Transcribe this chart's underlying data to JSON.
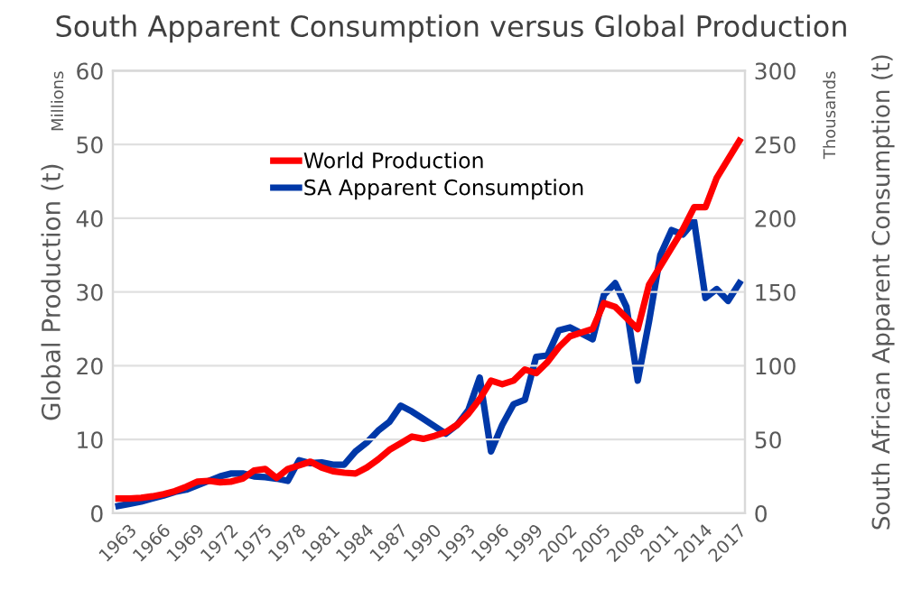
{
  "chart_data": {
    "type": "line",
    "title": "South Apparent Consumption versus Global Production",
    "categories": [
      "1963",
      null,
      null,
      "1966",
      null,
      null,
      "1969",
      null,
      null,
      "1972",
      null,
      null,
      "1975",
      null,
      null,
      "1978",
      null,
      null,
      "1981",
      null,
      null,
      "1984",
      null,
      null,
      "1987",
      null,
      null,
      "1990",
      null,
      null,
      "1993",
      null,
      null,
      "1996",
      null,
      null,
      "1999",
      null,
      null,
      "2002",
      null,
      null,
      "2005",
      null,
      null,
      "2008",
      null,
      null,
      "2011",
      null,
      null,
      "2014",
      null,
      null,
      "2017",
      null
    ],
    "series": [
      {
        "name": "World Production",
        "color": "#ff0000",
        "values": [
          2.0,
          2.0,
          2.1,
          2.3,
          2.6,
          3.0,
          3.6,
          4.3,
          4.4,
          4.2,
          4.3,
          4.7,
          5.8,
          6.0,
          4.8,
          6.0,
          6.5,
          7.0,
          6.2,
          5.7,
          5.5,
          5.4,
          6.2,
          7.3,
          8.6,
          9.5,
          10.4,
          10.1,
          10.5,
          11.0,
          12.0,
          13.5,
          15.5,
          18.0,
          17.5,
          18.0,
          19.5,
          19.0,
          20.5,
          22.5,
          24.0,
          24.5,
          25.0,
          28.5,
          28.0,
          26.5,
          25.0,
          31.0,
          33.5,
          36.0,
          38.5,
          41.5,
          41.5,
          45.5,
          48.0,
          50.5
        ]
      },
      {
        "name": "SA Apparent Consumption",
        "color": "#0038a8",
        "axis": "y2",
        "values": [
          5,
          6.5,
          8,
          10,
          12,
          14.5,
          16,
          19,
          22,
          25,
          27,
          27,
          25,
          24.5,
          23.5,
          22,
          36,
          34,
          34.5,
          33,
          33,
          42,
          48,
          56,
          62,
          73,
          69,
          64,
          59,
          54,
          60,
          70,
          92,
          42,
          60,
          74,
          77,
          106,
          107,
          124,
          126,
          122,
          118,
          148,
          156,
          140,
          90,
          130,
          175,
          192,
          189,
          198,
          146,
          152,
          144,
          156
        ]
      }
    ],
    "ylabel": "Global Production (t)",
    "y2label": "South African Apparent Consumption (t)",
    "ylim": [
      0,
      60
    ],
    "yticks": [
      0,
      10,
      20,
      30,
      40,
      50,
      60
    ],
    "y2lim": [
      0,
      300
    ],
    "y2ticks": [
      0,
      50,
      100,
      150,
      200,
      250,
      300
    ],
    "annotations": [
      "Millions",
      "Thousands"
    ],
    "grid": "y",
    "legend": "top",
    "marker": "none",
    "line_style": "solid"
  }
}
